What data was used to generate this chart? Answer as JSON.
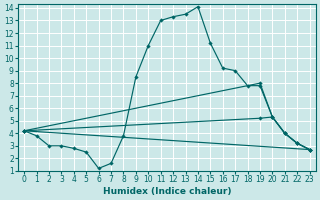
{
  "title": "",
  "xlabel": "Humidex (Indice chaleur)",
  "bg_color": "#cce8e8",
  "grid_color": "#ffffff",
  "line_color": "#006666",
  "xlim": [
    -0.5,
    23.5
  ],
  "ylim": [
    1,
    14.3
  ],
  "xticks": [
    0,
    1,
    2,
    3,
    4,
    5,
    6,
    7,
    8,
    9,
    10,
    11,
    12,
    13,
    14,
    15,
    16,
    17,
    18,
    19,
    20,
    21,
    22,
    23
  ],
  "yticks": [
    1,
    2,
    3,
    4,
    5,
    6,
    7,
    8,
    9,
    10,
    11,
    12,
    13,
    14
  ],
  "line1_x": [
    0,
    1,
    2,
    3,
    4,
    5,
    6,
    7,
    8,
    9,
    10,
    11,
    12,
    13,
    14,
    15,
    16,
    17,
    18,
    19,
    20,
    21,
    22,
    23
  ],
  "line1_y": [
    4.2,
    3.8,
    3.0,
    3.0,
    2.8,
    2.5,
    1.2,
    1.6,
    3.8,
    8.5,
    11.0,
    13.0,
    13.3,
    13.5,
    14.1,
    11.2,
    9.2,
    9.0,
    7.8,
    7.8,
    5.3,
    4.0,
    3.2,
    2.7
  ],
  "line2_x": [
    0,
    23
  ],
  "line2_y": [
    4.2,
    2.7
  ],
  "line3_x": [
    0,
    19,
    20,
    21,
    22,
    23
  ],
  "line3_y": [
    4.2,
    8.0,
    5.3,
    4.0,
    3.2,
    2.7
  ],
  "line4_x": [
    0,
    19,
    20,
    21,
    22,
    23
  ],
  "line4_y": [
    4.2,
    5.2,
    5.3,
    4.0,
    3.2,
    2.7
  ]
}
